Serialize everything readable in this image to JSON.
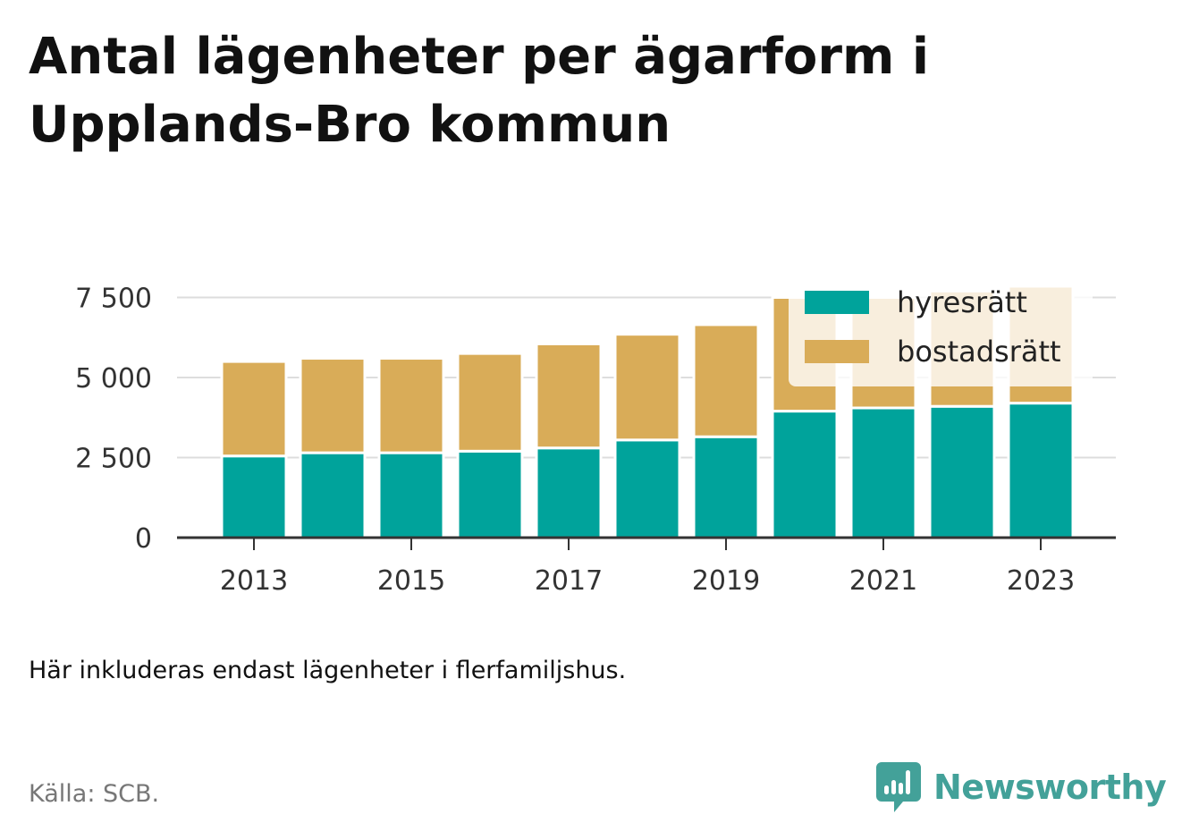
{
  "title": "Antal lägenheter per ägarform i Upplands-Bro kommun",
  "note": "Här inkluderas endast lägenheter i flerfamiljshus.",
  "source": "Källa: SCB.",
  "brand": {
    "name": "Newsworthy",
    "color": "#43a199",
    "icon": "newsworthy-bar-chart-icon"
  },
  "chart_data": {
    "type": "bar",
    "stacked": true,
    "title": "Antal lägenheter per ägarform i Upplands-Bro kommun",
    "xlabel": "",
    "ylabel": "",
    "categories": [
      "2013",
      "2014",
      "2015",
      "2016",
      "2017",
      "2018",
      "2019",
      "2020",
      "2021",
      "2022",
      "2023"
    ],
    "x_tick_labels": [
      "2013",
      "2015",
      "2017",
      "2019",
      "2021",
      "2023"
    ],
    "y_ticks": [
      0,
      2500,
      5000,
      7500
    ],
    "y_tick_labels": [
      "0",
      "2 500",
      "5 000",
      "7 500"
    ],
    "ylim": [
      0,
      7800
    ],
    "grid": true,
    "legend_position": "top-right",
    "series": [
      {
        "name": "hyresrätt",
        "color": "#00a39b",
        "values": [
          2550,
          2650,
          2650,
          2700,
          2800,
          3050,
          3150,
          3950,
          4050,
          4100,
          4200
        ]
      },
      {
        "name": "bostadsrätt",
        "color": "#d9ac58",
        "values": [
          2950,
          2950,
          2950,
          3050,
          3250,
          3300,
          3500,
          3550,
          3450,
          3600,
          3650
        ]
      }
    ]
  }
}
